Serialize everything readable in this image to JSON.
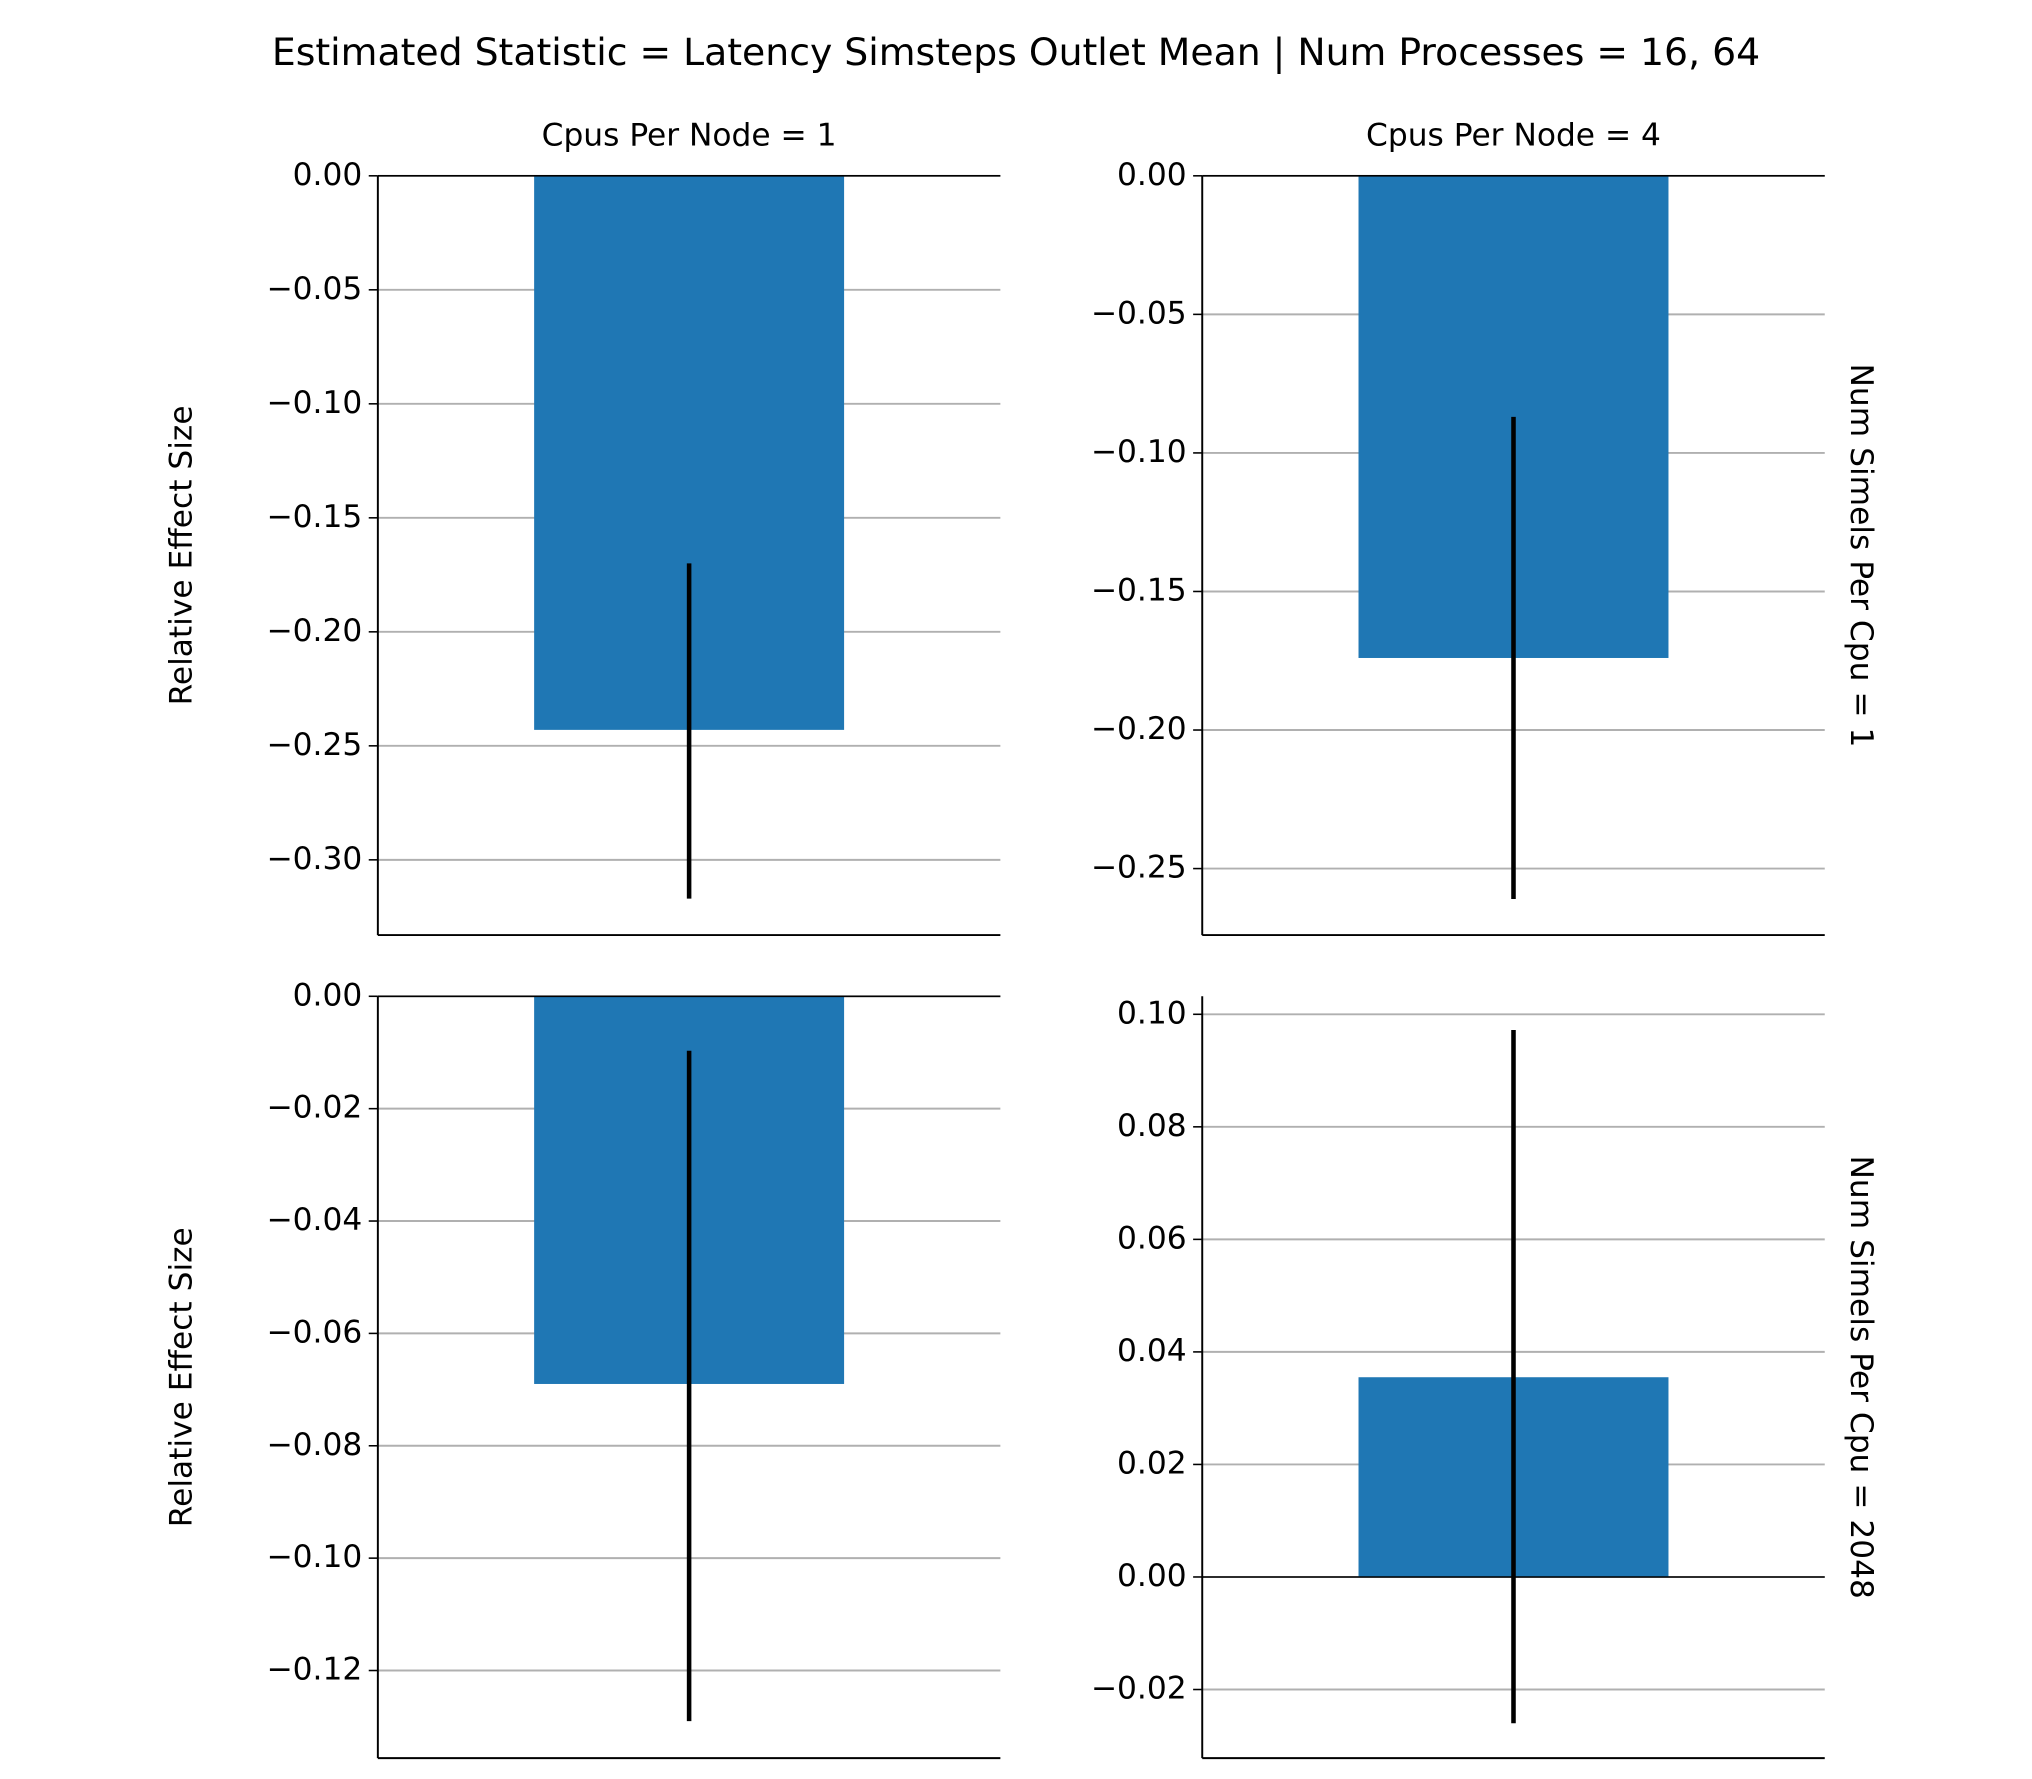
{
  "suptitle": "Estimated Statistic = Latency Simsteps Outlet Mean | Num Processes = 16, 64",
  "chart_data": [
    {
      "type": "bar",
      "title": "Cpus Per Node = 1",
      "y_label": "Relative Effect Size",
      "color": "#1f77b4",
      "grid": true,
      "values": [
        -0.243
      ],
      "ci": [
        [
          -0.317,
          -0.17
        ]
      ],
      "ylim": [
        -0.333,
        0
      ],
      "yticks": [
        {
          "value": 0,
          "label": "0.00"
        },
        {
          "value": -0.05,
          "label": "−0.05"
        },
        {
          "value": -0.1,
          "label": "−0.10"
        },
        {
          "value": -0.15,
          "label": "−0.15"
        },
        {
          "value": -0.2,
          "label": "−0.20"
        },
        {
          "value": -0.25,
          "label": "−0.25"
        },
        {
          "value": -0.3,
          "label": "−0.30"
        }
      ]
    },
    {
      "type": "bar",
      "title": "Cpus Per Node = 4",
      "row_label": "Num Simels Per Cpu = 1",
      "color": "#1f77b4",
      "grid": true,
      "values": [
        -0.174
      ],
      "ci": [
        [
          -0.261,
          -0.087
        ]
      ],
      "ylim": [
        -0.274,
        0
      ],
      "yticks": [
        {
          "value": 0,
          "label": "0.00"
        },
        {
          "value": -0.05,
          "label": "−0.05"
        },
        {
          "value": -0.1,
          "label": "−0.10"
        },
        {
          "value": -0.15,
          "label": "−0.15"
        },
        {
          "value": -0.2,
          "label": "−0.20"
        },
        {
          "value": -0.25,
          "label": "−0.25"
        }
      ]
    },
    {
      "type": "bar",
      "y_label": "Relative Effect Size",
      "color": "#1f77b4",
      "grid": true,
      "values": [
        -0.069
      ],
      "ci": [
        [
          -0.129,
          -0.0097
        ]
      ],
      "ylim": [
        -0.1356,
        0
      ],
      "yticks": [
        {
          "value": 0,
          "label": "0.00"
        },
        {
          "value": -0.02,
          "label": "−0.02"
        },
        {
          "value": -0.04,
          "label": "−0.04"
        },
        {
          "value": -0.06,
          "label": "−0.06"
        },
        {
          "value": -0.08,
          "label": "−0.08"
        },
        {
          "value": -0.1,
          "label": "−0.10"
        },
        {
          "value": -0.12,
          "label": "−0.12"
        }
      ]
    },
    {
      "type": "bar",
      "row_label": "Num Simels Per Cpu = 2048",
      "color": "#1f77b4",
      "grid": true,
      "values": [
        0.0355
      ],
      "ci": [
        [
          -0.026,
          0.0972
        ]
      ],
      "ylim": [
        -0.0322,
        0.1032
      ],
      "yticks": [
        {
          "value": 0.1,
          "label": "0.10"
        },
        {
          "value": 0.08,
          "label": "0.08"
        },
        {
          "value": 0.06,
          "label": "0.06"
        },
        {
          "value": 0.04,
          "label": "0.04"
        },
        {
          "value": 0.02,
          "label": "0.02"
        },
        {
          "value": 0,
          "label": "0.00"
        },
        {
          "value": -0.02,
          "label": "−0.02"
        }
      ]
    }
  ]
}
